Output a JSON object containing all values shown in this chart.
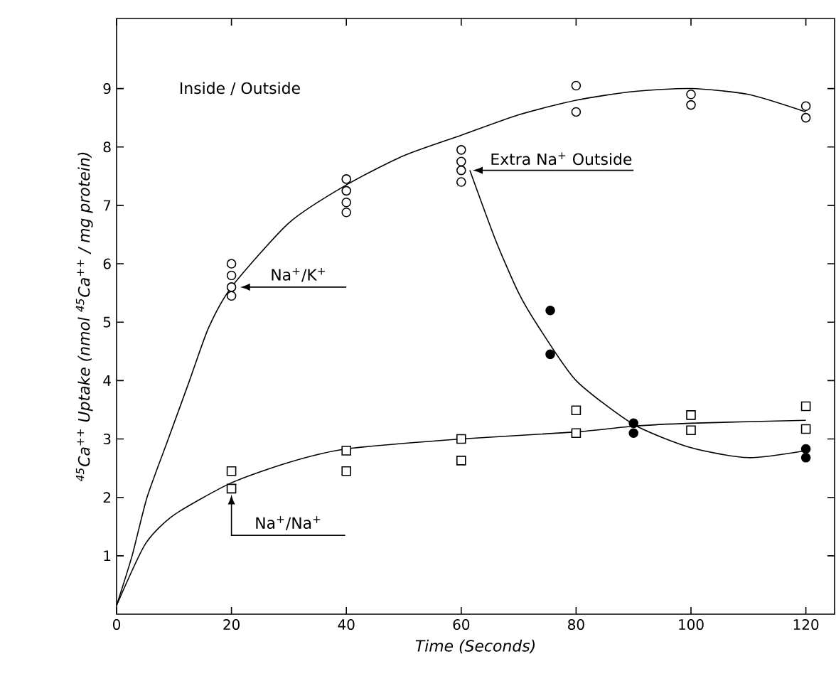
{
  "chart_data": {
    "type": "scatter",
    "xlabel": "Time (Seconds)",
    "ylabel": "$^{45}$Ca$^{++}$ Uptake (nmol $^{45}$Ca$^{++}$ / mg protein)",
    "xlim": [
      0,
      125
    ],
    "ylim": [
      0,
      10.2
    ],
    "xticks": [
      0,
      20,
      40,
      60,
      80,
      100,
      120
    ],
    "yticks": [
      1,
      2,
      3,
      4,
      5,
      6,
      7,
      8,
      9
    ],
    "grid": false,
    "series": [
      {
        "marker": "circle",
        "color": "#ffffff",
        "x": [
          20,
          20,
          20,
          20,
          40,
          40,
          40,
          40,
          60,
          60,
          60,
          60,
          80,
          80,
          100,
          100,
          120,
          120
        ],
        "values": [
          6.0,
          5.8,
          5.6,
          5.45,
          7.45,
          7.25,
          7.05,
          6.88,
          7.95,
          7.75,
          7.6,
          7.4,
          9.05,
          8.6,
          8.9,
          8.72,
          8.7,
          8.5
        ]
      },
      {
        "type": "line",
        "marker": "none",
        "color": "#000000",
        "x": [
          0,
          2.7,
          5.3,
          9,
          12.7,
          16,
          20,
          30,
          40,
          50,
          60,
          70,
          80,
          90,
          100,
          110,
          120
        ],
        "values": [
          0.15,
          1,
          2,
          3,
          4,
          4.9,
          5.6,
          6.7,
          7.35,
          7.85,
          8.2,
          8.55,
          8.8,
          8.95,
          9.0,
          8.9,
          8.6
        ]
      },
      {
        "marker": "square",
        "color": "#ffffff",
        "x": [
          20,
          20,
          40,
          40,
          60,
          60,
          80,
          80,
          100,
          100,
          120,
          120
        ],
        "values": [
          2.45,
          2.15,
          2.8,
          2.45,
          3.0,
          2.63,
          3.49,
          3.1,
          3.41,
          3.15,
          3.56,
          3.17
        ]
      },
      {
        "type": "line",
        "marker": "none",
        "color": "#000000",
        "x": [
          0,
          5,
          10,
          20,
          30,
          40,
          60,
          80,
          90,
          100,
          120
        ],
        "values": [
          0.15,
          1.2,
          1.7,
          2.25,
          2.6,
          2.83,
          3.0,
          3.12,
          3.22,
          3.27,
          3.32
        ]
      },
      {
        "marker": "circle",
        "color": "#000000",
        "x": [
          75.5,
          75.5,
          90,
          90,
          120,
          120
        ],
        "values": [
          5.2,
          4.45,
          3.27,
          3.1,
          2.83,
          2.68
        ]
      },
      {
        "type": "line",
        "marker": "none",
        "color": "#000000",
        "x": [
          61.5,
          66,
          70,
          73.4,
          80,
          90,
          100,
          110,
          120
        ],
        "values": [
          7.6,
          6.4,
          5.5,
          4.93,
          4.0,
          3.25,
          2.85,
          2.68,
          2.8
        ]
      }
    ],
    "annotations": [
      "Inside / Outside",
      {
        "text": "Na$^{+}$/K$^{+}$",
        "x": 21.5,
        "y": 5.6
      },
      {
        "text": "Extra Na$^{+}$ Outside",
        "x": 62,
        "y": 7.6
      },
      {
        "text": "Na$^{+}$/Na$^{+}$",
        "x": 20,
        "y": 2.05
      }
    ]
  }
}
